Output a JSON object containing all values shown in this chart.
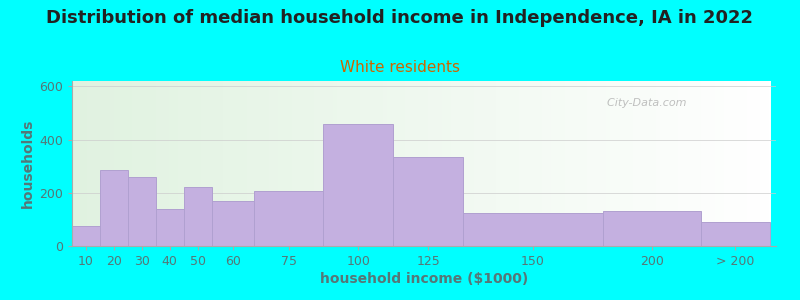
{
  "title": "Distribution of median household income in Independence, IA in 2022",
  "subtitle": "White residents",
  "xlabel": "household income ($1000)",
  "ylabel": "households",
  "background_outer": "#00FFFF",
  "bar_color": "#c4b0e0",
  "bar_edge_color": "#b0a0d0",
  "categories": [
    "10",
    "20",
    "30",
    "40",
    "50",
    "60",
    "75",
    "100",
    "125",
    "150",
    "200",
    "> 200"
  ],
  "values": [
    75,
    285,
    260,
    140,
    220,
    170,
    205,
    460,
    335,
    125,
    130,
    90
  ],
  "x_positions": [
    10,
    20,
    30,
    40,
    50,
    60,
    75,
    100,
    125,
    150,
    200,
    235
  ],
  "widths": [
    10,
    10,
    10,
    10,
    10,
    15,
    25,
    25,
    25,
    50,
    35,
    25
  ],
  "ylim": [
    0,
    620
  ],
  "yticks": [
    0,
    200,
    400,
    600
  ],
  "title_fontsize": 13,
  "subtitle_fontsize": 11,
  "axis_label_fontsize": 10,
  "tick_fontsize": 9,
  "watermark_text": "City-Data.com",
  "watermark_color": "#b0b0b0",
  "tick_color": "#557777",
  "label_color": "#557777",
  "subtitle_color": "#cc6600",
  "title_color": "#222222"
}
